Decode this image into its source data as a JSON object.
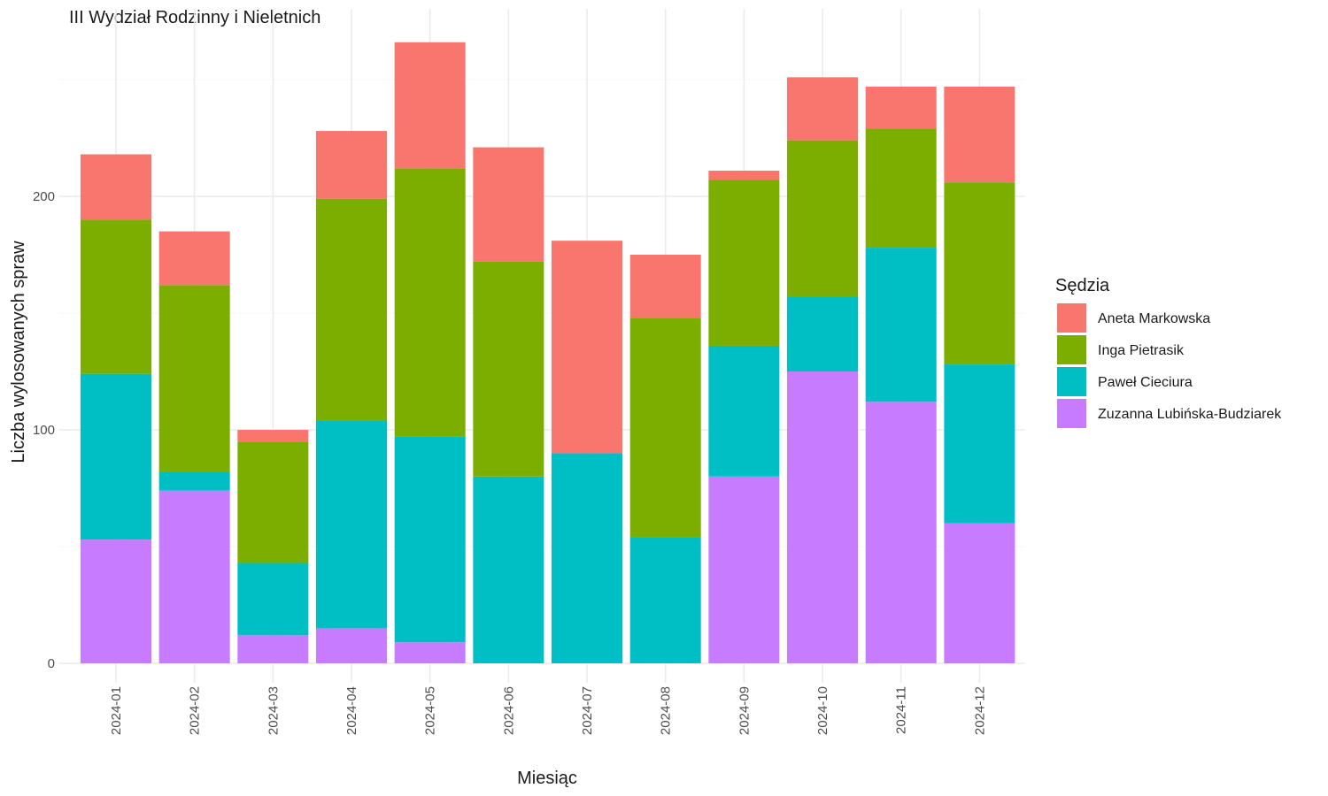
{
  "chart_data": {
    "type": "bar",
    "stacked": true,
    "title": "III Wydział Rodzinny i Nieletnich",
    "xlabel": "Miesiąc",
    "ylabel": "Liczba wylosowanych spraw",
    "ylim": [
      0,
      265
    ],
    "yticks": [
      0,
      100,
      200
    ],
    "grid": true,
    "legend": {
      "title": "Sędzia",
      "position": "right"
    },
    "categories": [
      "2024-01",
      "2024-02",
      "2024-03",
      "2024-04",
      "2024-05",
      "2024-06",
      "2024-07",
      "2024-08",
      "2024-09",
      "2024-10",
      "2024-11",
      "2024-12"
    ],
    "series": [
      {
        "name": "Zuzanna Lubińska-Budziarek",
        "color": "#C77CFF",
        "values": [
          53,
          74,
          12,
          15,
          9,
          0,
          0,
          0,
          80,
          125,
          112,
          60
        ]
      },
      {
        "name": "Paweł Cieciura",
        "color": "#00BFC4",
        "values": [
          71,
          8,
          31,
          89,
          88,
          80,
          90,
          54,
          56,
          32,
          66,
          68
        ]
      },
      {
        "name": "Inga Pietrasik",
        "color": "#7CAE00",
        "values": [
          66,
          80,
          52,
          95,
          115,
          92,
          0,
          94,
          71,
          67,
          51,
          78
        ]
      },
      {
        "name": "Aneta Markowska",
        "color": "#F8766D",
        "values": [
          28,
          23,
          5,
          29,
          54,
          49,
          91,
          27,
          4,
          27,
          18,
          41
        ]
      }
    ],
    "legend_order": [
      "Aneta Markowska",
      "Inga Pietrasik",
      "Paweł Cieciura",
      "Zuzanna Lubińska-Budziarek"
    ]
  }
}
